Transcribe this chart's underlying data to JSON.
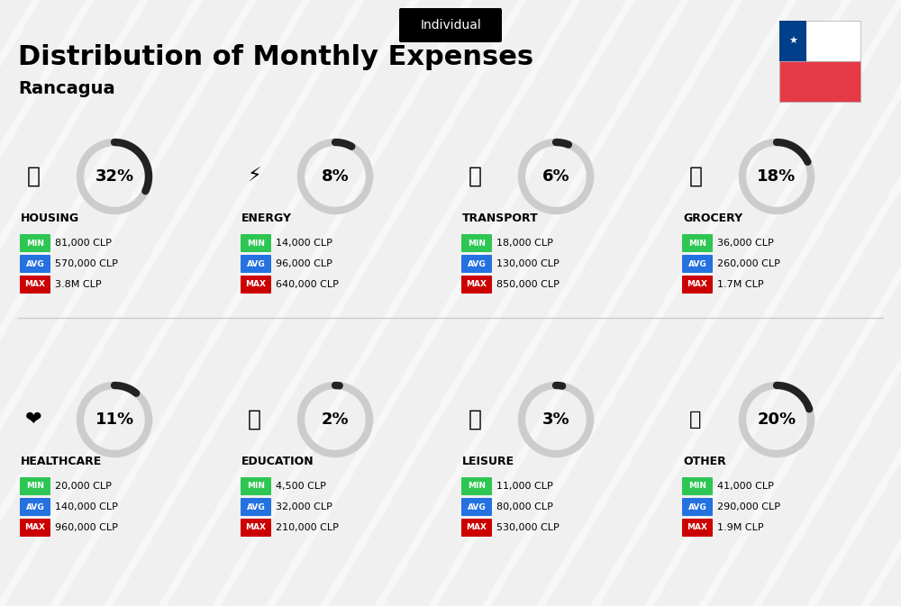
{
  "title": "Distribution of Monthly Expenses",
  "subtitle": "Rancagua",
  "badge": "Individual",
  "bg_color": "#f0f0f0",
  "categories": [
    {
      "name": "HOUSING",
      "pct": 32,
      "emoji": "🏗",
      "min": "81,000 CLP",
      "avg": "570,000 CLP",
      "max": "3.8M CLP",
      "row": 0,
      "col": 0
    },
    {
      "name": "ENERGY",
      "pct": 8,
      "emoji": "⚡",
      "min": "14,000 CLP",
      "avg": "96,000 CLP",
      "max": "640,000 CLP",
      "row": 0,
      "col": 1
    },
    {
      "name": "TRANSPORT",
      "pct": 6,
      "emoji": "🚌",
      "min": "18,000 CLP",
      "avg": "130,000 CLP",
      "max": "850,000 CLP",
      "row": 0,
      "col": 2
    },
    {
      "name": "GROCERY",
      "pct": 18,
      "emoji": "🛒",
      "min": "36,000 CLP",
      "avg": "260,000 CLP",
      "max": "1.7M CLP",
      "row": 0,
      "col": 3
    },
    {
      "name": "HEALTHCARE",
      "pct": 11,
      "emoji": "❤",
      "min": "20,000 CLP",
      "avg": "140,000 CLP",
      "max": "960,000 CLP",
      "row": 1,
      "col": 0
    },
    {
      "name": "EDUCATION",
      "pct": 2,
      "emoji": "🎓",
      "min": "4,500 CLP",
      "avg": "32,000 CLP",
      "max": "210,000 CLP",
      "row": 1,
      "col": 1
    },
    {
      "name": "LEISURE",
      "pct": 3,
      "emoji": "🛍",
      "min": "11,000 CLP",
      "avg": "80,000 CLP",
      "max": "530,000 CLP",
      "row": 1,
      "col": 2
    },
    {
      "name": "OTHER",
      "pct": 20,
      "emoji": "👜",
      "min": "41,000 CLP",
      "avg": "290,000 CLP",
      "max": "1.9M CLP",
      "row": 1,
      "col": 3
    }
  ],
  "color_min": "#2dc653",
  "color_avg": "#2471e0",
  "color_max": "#cc0000",
  "arc_color": "#222222",
  "arc_bg": "#cccccc",
  "icon_emojis": {
    "HOUSING": "🏗️",
    "ENERGY": "⚡",
    "TRANSPORT": "🚌",
    "GROCERY": "🛒",
    "HEALTHCARE": "❤️",
    "EDUCATION": "🎓",
    "LEISURE": "🛍️",
    "OTHER": "👜"
  }
}
